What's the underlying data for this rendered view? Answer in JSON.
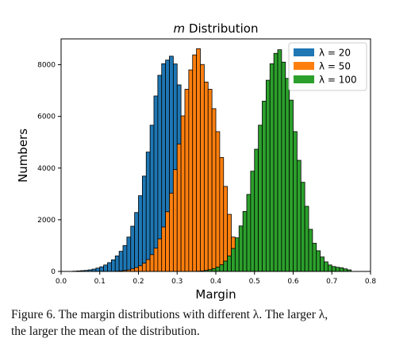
{
  "chart_data": {
    "type": "bar",
    "title_prefix": "m",
    "title_rest": " Distribution",
    "xlabel": "Margin",
    "ylabel": "Numbers",
    "xlim": [
      0.0,
      0.8
    ],
    "ylim": [
      0,
      9000
    ],
    "xticks": [
      0.0,
      0.1,
      0.2,
      0.3,
      0.4,
      0.5,
      0.6,
      0.7,
      0.8
    ],
    "xtick_labels": [
      "0.0",
      "0.1",
      "0.2",
      "0.3",
      "0.4",
      "0.5",
      "0.6",
      "0.7",
      "0.8"
    ],
    "yticks": [
      0,
      2000,
      4000,
      6000,
      8000
    ],
    "ytick_labels": [
      "0",
      "2000",
      "4000",
      "6000",
      "8000"
    ],
    "bin_width": 0.01,
    "grid": false,
    "legend_position": "top-right",
    "series": [
      {
        "name": "λ = 20",
        "color": "#1f77b4",
        "bin_start": 0.03,
        "values": [
          10,
          20,
          30,
          40,
          60,
          90,
          130,
          180,
          250,
          340,
          450,
          600,
          780,
          1000,
          1330,
          1750,
          2280,
          2930,
          3690,
          4620,
          5660,
          6790,
          7590,
          8040,
          8180,
          8330,
          8030,
          7220,
          5960,
          4610,
          3220,
          2070,
          1170,
          590,
          260,
          100,
          40,
          10
        ]
      },
      {
        "name": "λ = 50",
        "color": "#ff7f0e",
        "bin_start": 0.14,
        "values": [
          10,
          20,
          40,
          60,
          100,
          150,
          220,
          320,
          460,
          650,
          900,
          1260,
          1720,
          2310,
          3030,
          3940,
          4930,
          6020,
          7050,
          7800,
          8380,
          8620,
          8010,
          7330,
          7050,
          6300,
          5410,
          4410,
          3290,
          2210,
          1330,
          750,
          390,
          180,
          70,
          20
        ]
      },
      {
        "name": "λ = 100",
        "color": "#2ca02c",
        "bin_start": 0.35,
        "values": [
          10,
          20,
          40,
          70,
          110,
          170,
          260,
          400,
          600,
          890,
          1300,
          1760,
          2320,
          2980,
          3880,
          4730,
          5660,
          6590,
          7400,
          8040,
          8440,
          8580,
          8100,
          7470,
          6630,
          5410,
          4300,
          3450,
          2520,
          1630,
          1090,
          800,
          560,
          370,
          250,
          190,
          160,
          140,
          100,
          60
        ]
      }
    ]
  },
  "caption": {
    "line1": "Figure 6. The margin distributions with different λ. The larger λ,",
    "line2": "the larger the mean of the distribution."
  }
}
